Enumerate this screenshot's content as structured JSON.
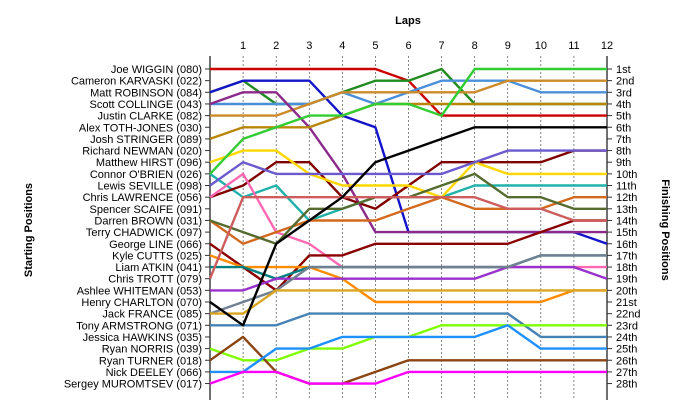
{
  "chart_data": {
    "type": "line",
    "title": "",
    "top_axis_title": "Laps",
    "left_axis_title": "Starting Positions",
    "right_axis_title": "Finishing Positions",
    "laps": [
      1,
      2,
      3,
      4,
      5,
      6,
      7,
      8,
      9,
      10,
      11,
      12
    ],
    "lap_labels": [
      "1",
      "2",
      "3",
      "4",
      "5",
      "6",
      "7",
      "8",
      "9",
      "10",
      "11",
      "12"
    ],
    "driver_labels": [
      "Joe WIGGIN (080)",
      "Cameron KARVASKI (022)",
      "Matt ROBINSON (084)",
      "Scott COLLINGE (043)",
      "Justin CLARKE (082)",
      "Alex TOTH-JONES (030)",
      "Josh STRINGER (089)",
      "Richard NEWMAN (020)",
      "Matthew HIRST (096)",
      "Connor O'BRIEN (026)",
      "Lewis SEVILLE (098)",
      "Chris LAWRENCE (056)",
      "Spencer SCAIFE (091)",
      "Darren BROWN (031)",
      "Terry CHADWICK (097)",
      "George LINE (066)",
      "Kyle CUTTS (025)",
      "Liam ATKIN (041)",
      "Chris TROTT (079)",
      "Ashlee WHITEMAN (053)",
      "Henry CHARLTON (070)",
      "Jack FRANCE (085)",
      "Tony ARMSTRONG (071)",
      "Jessica HAWKINS (035)",
      "Ryan NORRIS (039)",
      "Ryan TURNER (018)",
      "Nick DEELEY (066)",
      "Sergey MUROMTSEV (017)"
    ],
    "finish_labels": [
      "1st",
      "2nd",
      "3rd",
      "4th",
      "5th",
      "6th",
      "7th",
      "8th",
      "9th",
      "10th",
      "11th",
      "12th",
      "13th",
      "14th",
      "15th",
      "16th",
      "17th",
      "18th",
      "19th",
      "20th",
      "21st",
      "22nd",
      "23rd",
      "24th",
      "25th",
      "26th",
      "27th",
      "28th"
    ],
    "series": [
      {
        "color": "#cc0000",
        "values": [
          1,
          1,
          1,
          1,
          1,
          1,
          2,
          5,
          5,
          5,
          5,
          5,
          5
        ]
      },
      {
        "color": "#228b22",
        "values": [
          3,
          2,
          4,
          4,
          3,
          2,
          2,
          1,
          4,
          4,
          4,
          4,
          4
        ]
      },
      {
        "color": "#1414c8",
        "values": [
          3,
          2,
          2,
          2,
          5,
          6,
          15,
          15,
          15,
          15,
          15,
          15,
          16
        ]
      },
      {
        "color": "#4a90d9",
        "values": [
          4,
          4,
          4,
          4,
          3,
          4,
          3,
          2,
          2,
          2,
          3,
          3,
          3
        ]
      },
      {
        "color": "#cc8a2a",
        "values": [
          5,
          5,
          5,
          4,
          3,
          3,
          3,
          3,
          3,
          2,
          2,
          2,
          2
        ]
      },
      {
        "color": "#8b2a8b",
        "values": [
          4,
          3,
          3,
          6,
          10,
          15,
          15,
          15,
          15,
          15,
          15,
          15,
          15
        ]
      },
      {
        "color": "#b8860b",
        "values": [
          7,
          6,
          6,
          6,
          5,
          4,
          4,
          4,
          4,
          4,
          4,
          4,
          4
        ]
      },
      {
        "color": "#20b2aa",
        "values": [
          10,
          12,
          11,
          14,
          13,
          12,
          12,
          12,
          11,
          11,
          11,
          11,
          11
        ]
      },
      {
        "color": "#800000",
        "values": [
          12,
          11,
          9,
          9,
          12,
          13,
          11,
          9,
          9,
          9,
          9,
          8,
          8
        ]
      },
      {
        "color": "#ffd700",
        "values": [
          9,
          8,
          8,
          10,
          11,
          11,
          11,
          12,
          9,
          10,
          10,
          10,
          10
        ]
      },
      {
        "color": "#6a5acd",
        "values": [
          11,
          9,
          10,
          10,
          10,
          10,
          10,
          10,
          9,
          8,
          8,
          8,
          8
        ]
      },
      {
        "color": "#ff69b4",
        "values": [
          12,
          10,
          15,
          16,
          18,
          18,
          18,
          18,
          18,
          18,
          18,
          18,
          18
        ]
      },
      {
        "color": "#32cd32",
        "values": [
          10,
          7,
          6,
          5,
          5,
          4,
          4,
          5,
          1,
          1,
          1,
          1,
          1
        ]
      },
      {
        "color": "#d2691e",
        "values": [
          14,
          16,
          15,
          14,
          14,
          14,
          13,
          12,
          13,
          13,
          13,
          12,
          12
        ]
      },
      {
        "color": "#556b2f",
        "values": [
          14,
          15,
          16,
          13,
          13,
          12,
          12,
          11,
          10,
          12,
          12,
          13,
          13
        ]
      },
      {
        "color": "#8b0000",
        "values": [
          16,
          18,
          20,
          17,
          17,
          16,
          16,
          16,
          16,
          16,
          15,
          14,
          14
        ]
      },
      {
        "color": "#ff8c00",
        "values": [
          17,
          18,
          18,
          18,
          19,
          21,
          21,
          21,
          21,
          21,
          21,
          20,
          20
        ]
      },
      {
        "color": "#008080",
        "values": [
          18,
          18,
          19,
          18,
          18,
          18,
          18,
          18,
          18,
          18,
          17,
          17,
          17
        ]
      },
      {
        "color": "#cd5c5c",
        "values": [
          19,
          12,
          12,
          12,
          12,
          12,
          12,
          12,
          12,
          13,
          13,
          14,
          14
        ]
      },
      {
        "color": "#9932cc",
        "values": [
          20,
          20,
          19,
          19,
          19,
          19,
          19,
          19,
          19,
          18,
          18,
          18,
          19
        ]
      },
      {
        "color": "#708090",
        "values": [
          22,
          21,
          20,
          18,
          18,
          18,
          18,
          18,
          18,
          18,
          17,
          17,
          17
        ]
      },
      {
        "color": "#daa520",
        "values": [
          22,
          22,
          20,
          20,
          20,
          20,
          20,
          20,
          20,
          20,
          20,
          20,
          20
        ]
      },
      {
        "color": "#4682b4",
        "values": [
          23,
          23,
          23,
          22,
          22,
          22,
          22,
          22,
          22,
          22,
          24,
          24,
          24
        ]
      },
      {
        "color": "#000000",
        "values": [
          21,
          23,
          16,
          14,
          12,
          9,
          8,
          7,
          6,
          6,
          6,
          6,
          6
        ]
      },
      {
        "color": "#7fff00",
        "values": [
          25,
          26,
          26,
          25,
          25,
          24,
          24,
          23,
          23,
          23,
          23,
          23,
          23
        ]
      },
      {
        "color": "#8b4513",
        "values": [
          26,
          24,
          27,
          28,
          28,
          27,
          26,
          26,
          26,
          26,
          26,
          26,
          26
        ]
      },
      {
        "color": "#1e90ff",
        "values": [
          27,
          27,
          25,
          25,
          24,
          24,
          24,
          24,
          24,
          23,
          25,
          25,
          25
        ]
      },
      {
        "color": "#ff00ff",
        "values": [
          28,
          27,
          27,
          28,
          28,
          28,
          27,
          27,
          27,
          27,
          27,
          27,
          27
        ]
      }
    ]
  }
}
